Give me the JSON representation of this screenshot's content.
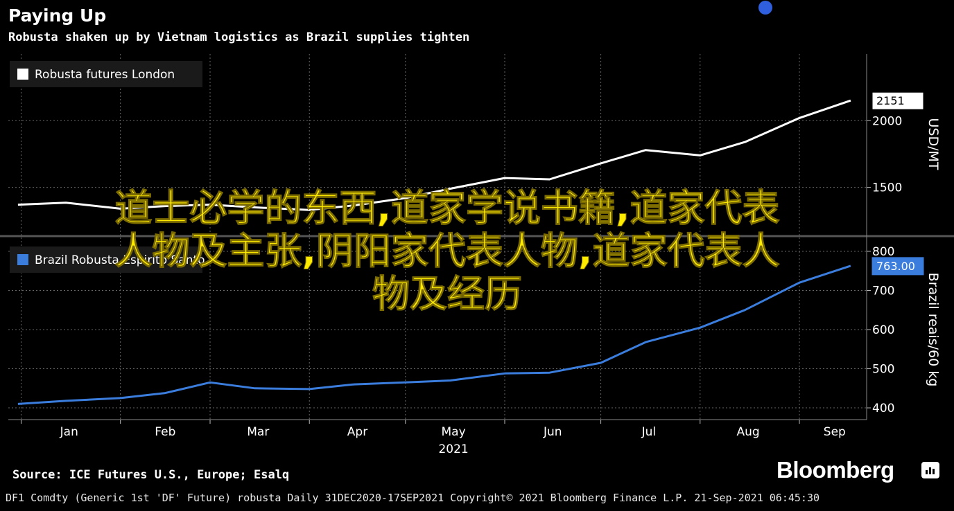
{
  "header": {
    "title": "Paying Up",
    "subtitle": "Robusta shaken up by Vietnam logistics as Brazil supplies tighten"
  },
  "chart_data": [
    {
      "type": "line",
      "series": [
        {
          "name": "Robusta futures London",
          "color": "#ffffff",
          "last_value_label": "2151",
          "x": [
            "2020-12-31",
            "2021-01-15",
            "2021-02-01",
            "2021-02-15",
            "2021-03-01",
            "2021-03-15",
            "2021-04-01",
            "2021-04-15",
            "2021-05-01",
            "2021-05-15",
            "2021-06-01",
            "2021-06-15",
            "2021-07-01",
            "2021-07-15",
            "2021-08-01",
            "2021-08-15",
            "2021-09-01",
            "2021-09-17"
          ],
          "values": [
            1370,
            1385,
            1340,
            1360,
            1370,
            1350,
            1330,
            1365,
            1420,
            1490,
            1570,
            1560,
            1680,
            1780,
            1740,
            1840,
            2020,
            2151
          ]
        }
      ],
      "ylabel": "USD/MT",
      "y_ticks": [
        "1500",
        "2000"
      ],
      "ylim": [
        1150,
        2500
      ],
      "axis_side": "right",
      "legend": "top-left",
      "grid": true
    },
    {
      "type": "line",
      "series": [
        {
          "name": "Brazil Robusta Espirito Santo",
          "color": "#3b7ddd",
          "last_value_label": "763.00",
          "x": [
            "2020-12-31",
            "2021-01-15",
            "2021-02-01",
            "2021-02-15",
            "2021-03-01",
            "2021-03-15",
            "2021-04-01",
            "2021-04-15",
            "2021-05-01",
            "2021-05-15",
            "2021-06-01",
            "2021-06-15",
            "2021-07-01",
            "2021-07-15",
            "2021-08-01",
            "2021-08-15",
            "2021-09-01",
            "2021-09-17"
          ],
          "values": [
            410,
            418,
            425,
            438,
            465,
            450,
            448,
            460,
            465,
            470,
            488,
            490,
            515,
            568,
            605,
            650,
            720,
            763
          ]
        }
      ],
      "ylabel": "Brazil reais/60 kg",
      "y_ticks": [
        "400",
        "500",
        "600",
        "700",
        "800"
      ],
      "ylim": [
        370,
        830
      ],
      "axis_side": "right",
      "legend": "top-left",
      "grid": true
    }
  ],
  "x_axis": {
    "labels": [
      "Jan",
      "Feb",
      "Mar",
      "Apr",
      "May",
      "Jun",
      "Jul",
      "Aug",
      "Sep"
    ],
    "year_label": "2021",
    "range": [
      "2020-12-28",
      "2021-09-22"
    ]
  },
  "overlay_text": {
    "line1": "道士必学的东西,道家学说书籍,道家代表",
    "line2": "人物及主张,阴阳家代表人物,道家代表人",
    "line3": "物及经历"
  },
  "footer": {
    "source": "Source: ICE Futures U.S., Europe; Esalq",
    "brand": "Bloomberg",
    "info": "DF1 Comdty (Generic 1st 'DF' Future) robusta  Daily 31DEC2020-17SEP2021  Copyright© 2021 Bloomberg Finance L.P.  21-Sep-2021 06:45:30"
  }
}
